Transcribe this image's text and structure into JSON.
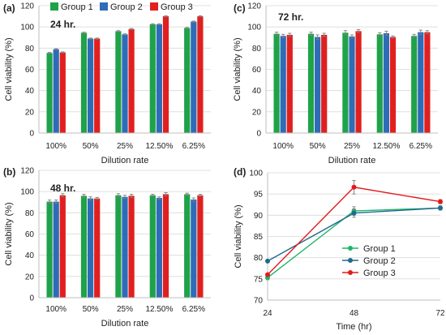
{
  "colors": {
    "group1": "#1fa24a",
    "group2": "#2e6cb8",
    "group3": "#e11f1f",
    "line_group1": "#1fb56a",
    "line_group2": "#1f6a8e",
    "line_group3": "#e21a1a",
    "grid": "#d9d9d9",
    "axis": "#bfbfbf",
    "errorbar": "#7f7f7f"
  },
  "chart_data": [
    {
      "panel": "(a)",
      "type": "bar",
      "annotation": "24 hr.",
      "categories": [
        "100%",
        "50%",
        "25%",
        "12.50%",
        "6.25%"
      ],
      "series": [
        {
          "name": "Group 1",
          "values": [
            75.5,
            94.5,
            96,
            102.5,
            99
          ],
          "errors": [
            0.5,
            0.5,
            0.5,
            0.5,
            0.5
          ]
        },
        {
          "name": "Group 2",
          "values": [
            79,
            89,
            93,
            102.5,
            105
          ],
          "errors": [
            0.5,
            0.5,
            0.5,
            0.5,
            0.5
          ]
        },
        {
          "name": "Group 3",
          "values": [
            76,
            89,
            98,
            110,
            110
          ],
          "errors": [
            0.5,
            0.5,
            0.5,
            0.5,
            0.5
          ]
        }
      ],
      "xlabel": "Dilution rate",
      "ylabel": "Cell viability (%)",
      "ylim": [
        0,
        120
      ],
      "yticks": [
        0,
        20,
        40,
        60,
        80,
        100,
        120
      ],
      "legend": "top"
    },
    {
      "panel": "(b)",
      "type": "bar",
      "annotation": "48 hr.",
      "categories": [
        "100%",
        "50%",
        "25%",
        "12.50%",
        "6.25%"
      ],
      "series": [
        {
          "name": "Group 1",
          "values": [
            90.5,
            96,
            96.5,
            96.5,
            97.5
          ],
          "errors": [
            1.5,
            1.5,
            1.5,
            1,
            1
          ]
        },
        {
          "name": "Group 2",
          "values": [
            90.5,
            93.5,
            95,
            94,
            92.5
          ],
          "errors": [
            1.5,
            1.5,
            1.5,
            1,
            1.5
          ]
        },
        {
          "name": "Group 3",
          "values": [
            96.5,
            93.5,
            96,
            97.5,
            96.5
          ],
          "errors": [
            1.5,
            1,
            1.5,
            1.5,
            1
          ]
        }
      ],
      "xlabel": "Dilution rate",
      "ylabel": "Cell viability (%)",
      "ylim": [
        0,
        120
      ],
      "yticks": [
        0,
        20,
        40,
        60,
        80,
        100,
        120
      ]
    },
    {
      "panel": "(c)",
      "type": "bar",
      "annotation": "72 hr.",
      "categories": [
        "100%",
        "50%",
        "25%",
        "12.50%",
        "6.25%"
      ],
      "series": [
        {
          "name": "Group 1",
          "values": [
            93.5,
            93.5,
            94.5,
            93,
            91.5
          ],
          "errors": [
            1.5,
            1.5,
            2,
            1.5,
            1.5
          ]
        },
        {
          "name": "Group 2",
          "values": [
            91.5,
            90.5,
            91,
            94,
            95
          ],
          "errors": [
            1.5,
            2,
            1.5,
            2,
            2
          ]
        },
        {
          "name": "Group 3",
          "values": [
            92.5,
            92.5,
            96,
            90.5,
            95
          ],
          "errors": [
            1.5,
            1.5,
            1.5,
            1,
            1.5
          ]
        }
      ],
      "xlabel": "Dilution rate",
      "ylabel": "Cell viability (%)",
      "ylim": [
        0,
        120
      ],
      "yticks": [
        0,
        20,
        40,
        60,
        80,
        100,
        120
      ]
    },
    {
      "panel": "(d)",
      "type": "line",
      "x": [
        24,
        48,
        72
      ],
      "xticks": [
        "24",
        "48",
        "72"
      ],
      "series": [
        {
          "name": "Group 1",
          "values": [
            75.3,
            91.0,
            91.7
          ],
          "errors": [
            0.5,
            1.0,
            0.5
          ]
        },
        {
          "name": "Group 2",
          "values": [
            79.2,
            90.5,
            91.7
          ],
          "errors": [
            0.3,
            1.0,
            0.5
          ]
        },
        {
          "name": "Group 3",
          "values": [
            76.0,
            96.6,
            93.2
          ],
          "errors": [
            0.3,
            1.6,
            0.5
          ]
        }
      ],
      "xlabel": "Time (hr)",
      "ylabel": "Cell viability (%)",
      "ylim": [
        70,
        100
      ],
      "yticks": [
        70,
        75,
        80,
        85,
        90,
        95,
        100
      ],
      "legend": "bottom-right"
    }
  ]
}
